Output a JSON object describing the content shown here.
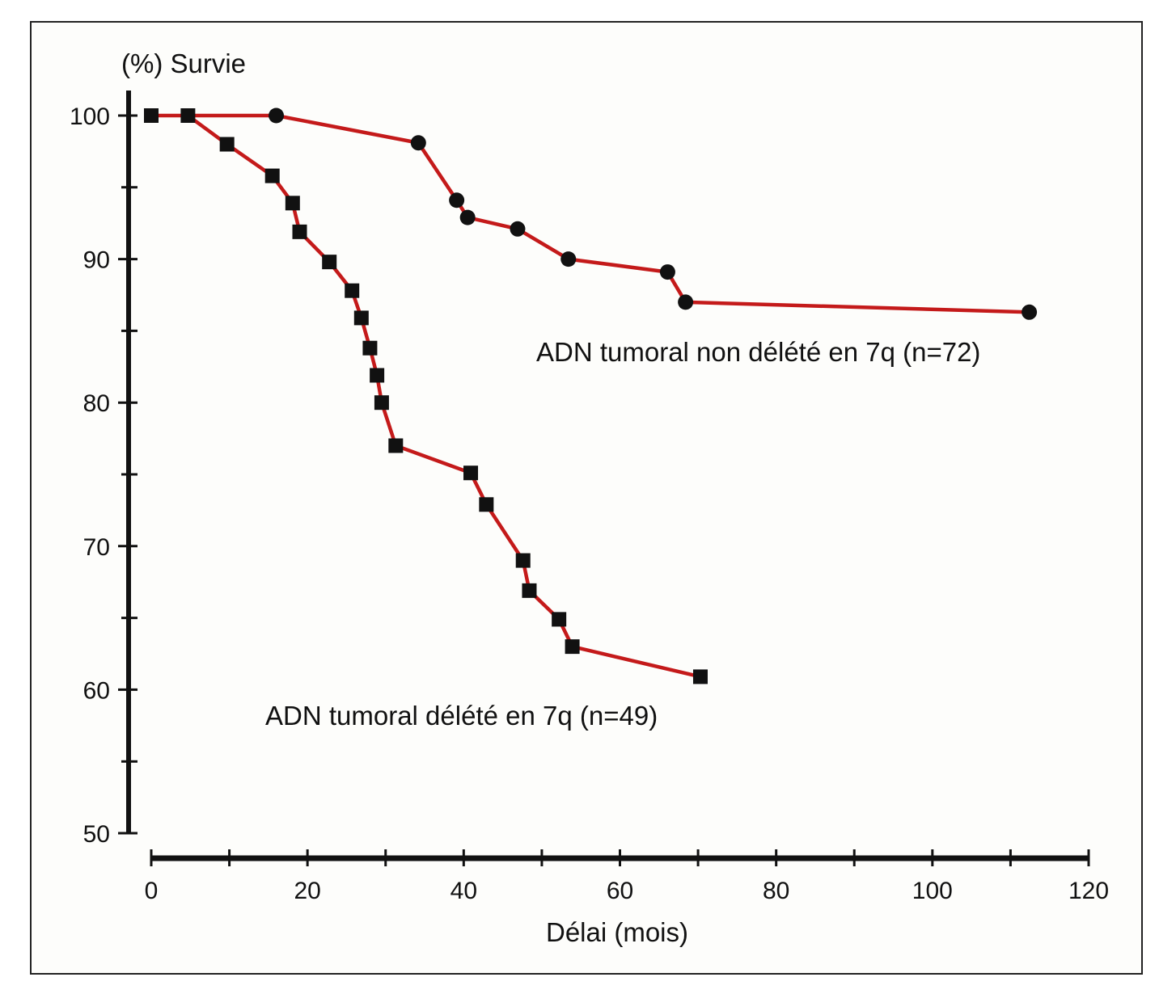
{
  "chart_data": {
    "type": "line",
    "ylabel": "(%) Survie",
    "xlabel": "Délai (mois)",
    "xlim": [
      0,
      120
    ],
    "ylim": [
      50,
      100
    ],
    "xticks": [
      0,
      20,
      40,
      60,
      80,
      100,
      120
    ],
    "yticks": [
      50,
      60,
      70,
      80,
      90,
      100
    ],
    "grid": false,
    "line_color": "#c41a1a",
    "marker_color": "#111111",
    "series": [
      {
        "name": "ADN tumoral non délété en 7q (n=72)",
        "marker": "circle",
        "x": [
          16,
          34.2,
          39.1,
          40.5,
          46.9,
          53.4,
          66.1,
          68.4,
          112.4
        ],
        "y": [
          100,
          98.1,
          94.1,
          92.9,
          92.1,
          90.0,
          89.1,
          87.0,
          86.3
        ]
      },
      {
        "name": "ADN tumoral délété en 7q (n=49)",
        "marker": "square",
        "x": [
          0,
          4.7,
          9.7,
          15.5,
          18.1,
          19.0,
          22.8,
          25.7,
          26.9,
          28.0,
          28.9,
          29.5,
          31.3,
          40.9,
          42.9,
          47.6,
          48.4,
          52.2,
          53.9,
          70.3
        ],
        "y": [
          100,
          100,
          98.0,
          95.8,
          93.9,
          91.9,
          89.8,
          87.8,
          85.9,
          83.8,
          81.9,
          80.0,
          77.0,
          75.1,
          72.9,
          69.0,
          66.9,
          64.9,
          63.0,
          60.9
        ]
      }
    ]
  }
}
